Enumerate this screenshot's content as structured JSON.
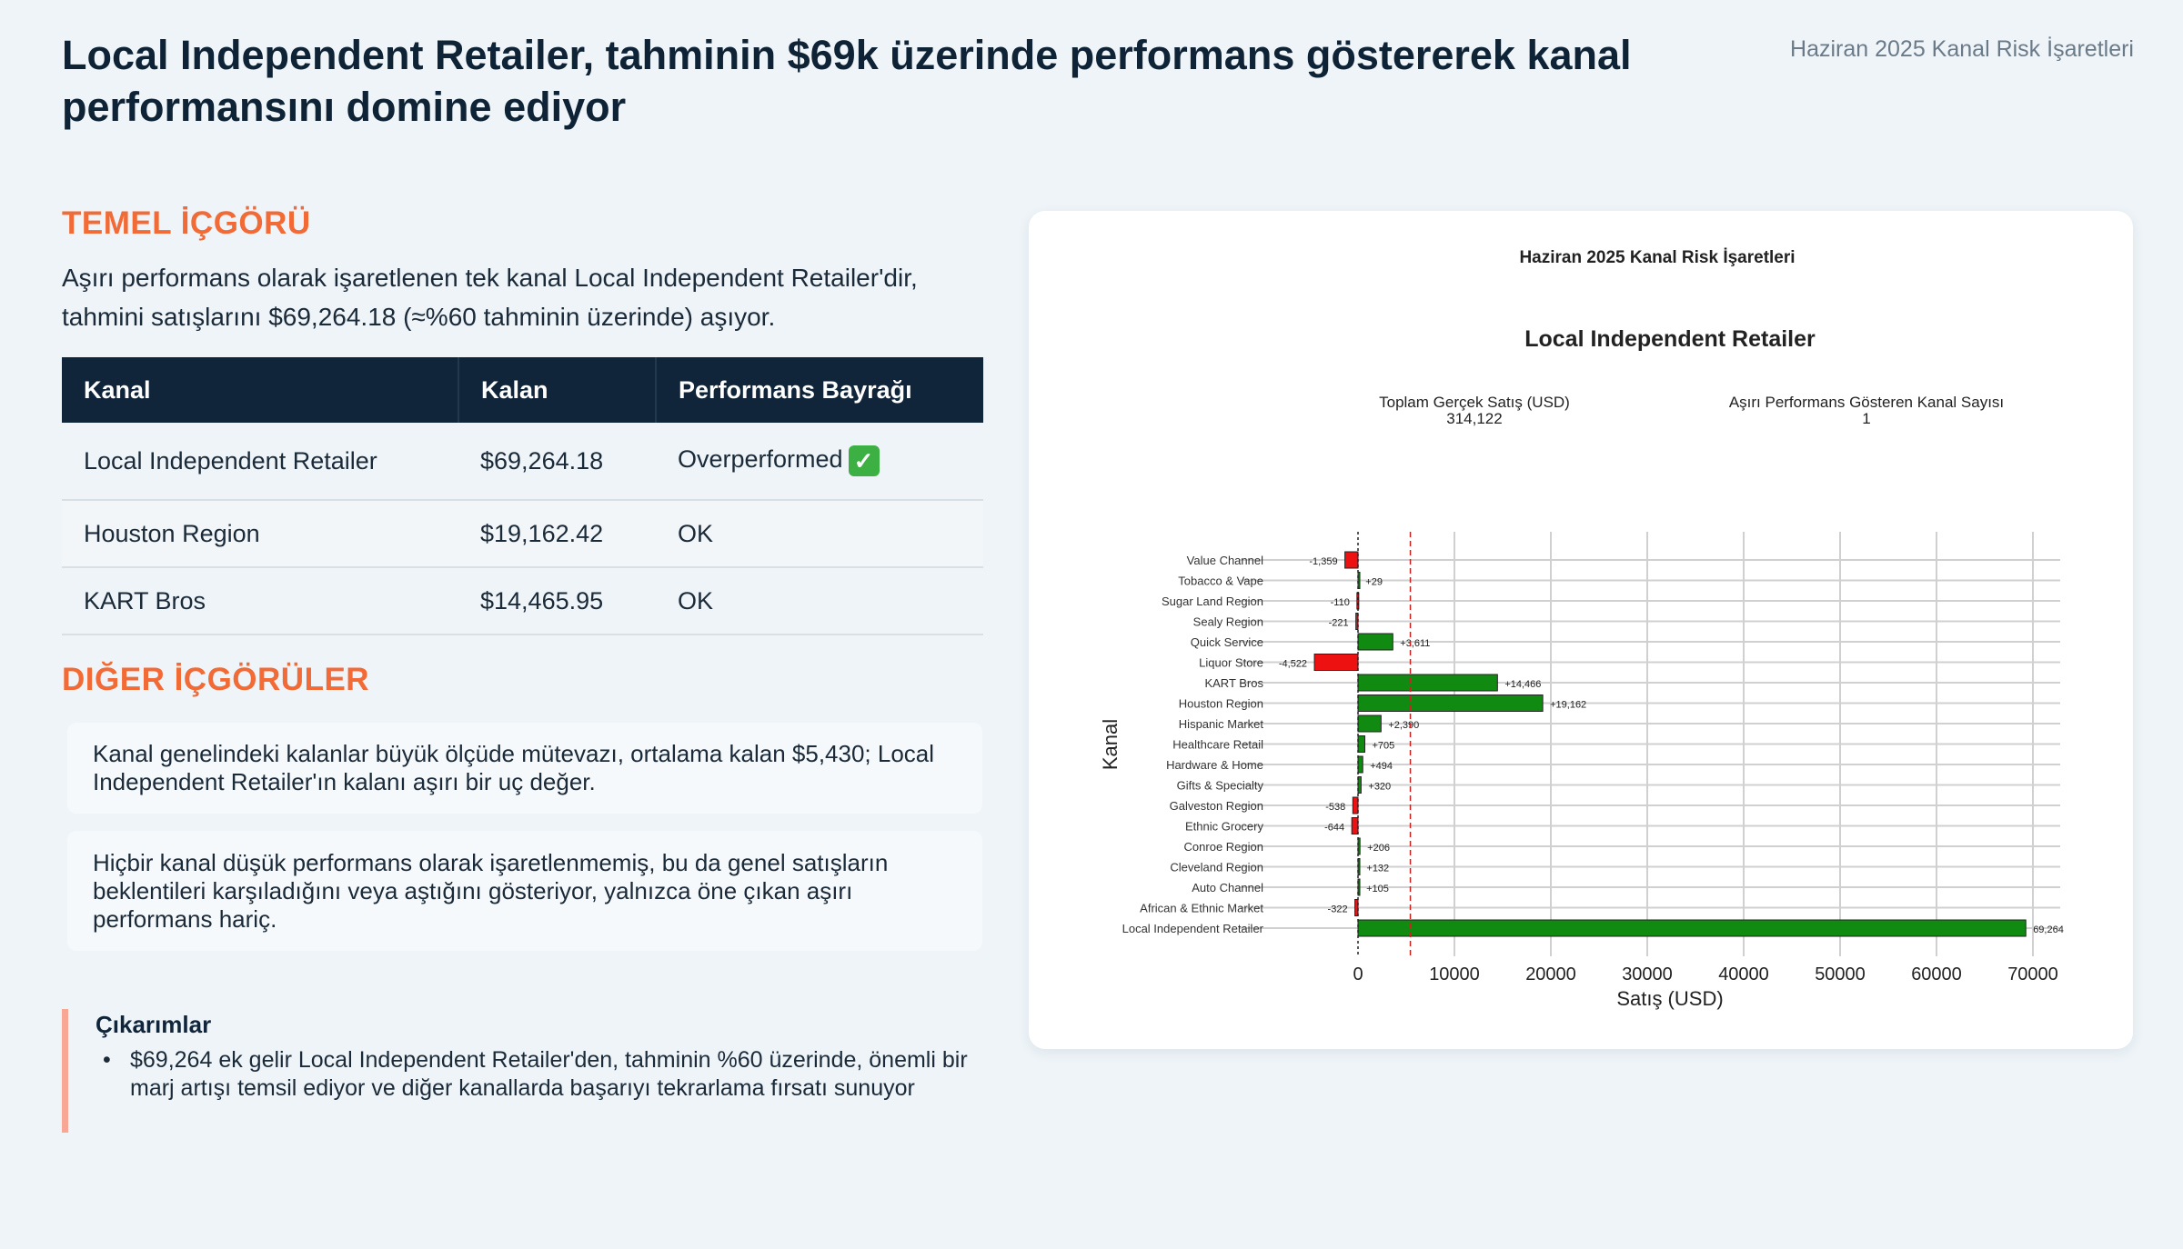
{
  "header": {
    "title": "Local Independent Retailer, tahminin $69k üzerinde performans göstererek kanal performansını domine ediyor",
    "tag": "Haziran 2025 Kanal Risk İşaretleri"
  },
  "key_insight": {
    "heading": "TEMEL İÇGÖRÜ",
    "text": "Aşırı performans olarak işaretlenen tek kanal Local Independent Retailer'dir, tahmini satışlarını $69,264.18 (≈%60 tahminin üzerinde) aşıyor."
  },
  "table": {
    "headers": [
      "Kanal",
      "Kalan",
      "Performans Bayrağı"
    ],
    "rows": [
      {
        "kanal": "Local Independent Retailer",
        "kalan": "$69,264.18",
        "flag": "Overperformed",
        "badge": "✓"
      },
      {
        "kanal": "Houston Region",
        "kalan": "$19,162.42",
        "flag": "OK"
      },
      {
        "kanal": "KART Bros",
        "kalan": "$14,465.95",
        "flag": "OK"
      }
    ]
  },
  "other_insights": {
    "heading": "DIĞER İÇGÖRÜLER",
    "items": [
      "Kanal genelindeki kalanlar büyük ölçüde mütevazı, ortalama kalan $5,430; Local Independent Retailer'ın kalanı aşırı bir uç değer.",
      "Hiçbir kanal düşük performans olarak işaretlenmemiş, bu da genel satışların beklentileri karşıladığını veya aştığını gösteriyor, yalnızca öne çıkan aşırı performans hariç."
    ]
  },
  "outcomes": {
    "title": "Çıkarımlar",
    "items": [
      "$69,264 ek gelir Local Independent Retailer'den, tahminin %60 üzerinde, önemli bir marj artışı temsil ediyor ve diğer kanallarda başarıyı tekrarlama fırsatı sunuyor"
    ]
  },
  "chart_data": {
    "type": "bar",
    "orientation": "horizontal",
    "title": "Haziran 2025 Kanal Risk İşaretleri",
    "subtitle": "Local Independent Retailer",
    "kpis": [
      {
        "label": "Toplam Gerçek Satış (USD)",
        "value": "314,122"
      },
      {
        "label": "Aşırı Performans Gösteren Kanal Sayısı",
        "value": "1"
      }
    ],
    "xlabel": "Satış (USD)",
    "ylabel": "Kanal",
    "xlim": [
      -6000,
      72000
    ],
    "xticks": [
      0,
      10000,
      20000,
      30000,
      40000,
      50000,
      60000,
      70000
    ],
    "reference_line": 5430,
    "grid": true,
    "categories": [
      "Value Channel",
      "Tobacco & Vape",
      "Sugar Land Region",
      "Sealy Region",
      "Quick Service",
      "Liquor Store",
      "KART Bros",
      "Houston Region",
      "Hispanic Market",
      "Healthcare Retail",
      "Hardware & Home",
      "Gifts & Specialty",
      "Galveston Region",
      "Ethnic Grocery",
      "Conroe Region",
      "Cleveland Region",
      "Auto Channel",
      "African & Ethnic Market",
      "Local Independent Retailer"
    ],
    "values": [
      -1359,
      29,
      -110,
      -221,
      3611,
      -4522,
      14466,
      19162,
      2390,
      705,
      494,
      320,
      -538,
      -644,
      206,
      132,
      105,
      -322,
      69264
    ],
    "labels": [
      "-1,359",
      "+29",
      "-110",
      "-221",
      "+3,611",
      "-4,522",
      "+14,466",
      "+19,162",
      "+2,390",
      "+705",
      "+494",
      "+320",
      "-538",
      "-644",
      "+206",
      "+132",
      "+105",
      "-322",
      "69,264"
    ],
    "colors": {
      "positive": "#118a11",
      "negative": "#ee1111",
      "reference": "#cc2222"
    }
  }
}
